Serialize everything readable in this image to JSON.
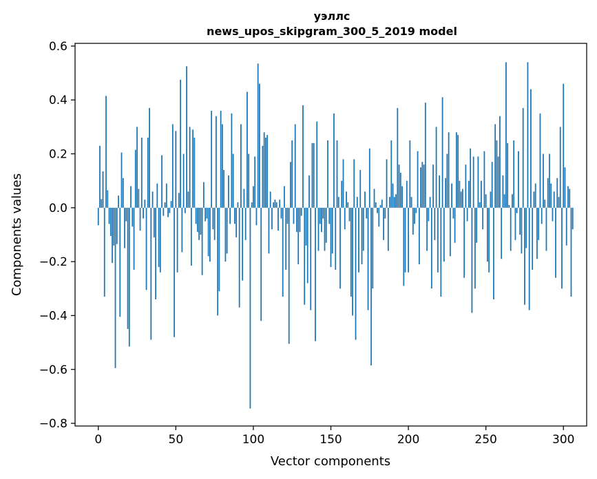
{
  "chart_data": {
    "type": "bar",
    "title_line1": "уэллс",
    "title_line2": "news_upos_skipgram_300_5_2019 model",
    "xlabel": "Vector components",
    "ylabel": "Components values",
    "xlim": [
      -15,
      315
    ],
    "ylim": [
      -0.81,
      0.61
    ],
    "xticks": [
      0,
      50,
      100,
      150,
      200,
      250,
      300
    ],
    "yticks": [
      -0.8,
      -0.6,
      -0.4,
      -0.2,
      0.0,
      0.2,
      0.4,
      0.6
    ],
    "bar_color": "#1f77b4",
    "x_start": 0,
    "values": [
      -0.065,
      0.23,
      0.032,
      0.135,
      -0.33,
      0.415,
      0.065,
      -0.06,
      -0.105,
      -0.205,
      -0.14,
      -0.595,
      -0.135,
      0.045,
      -0.405,
      0.205,
      0.11,
      -0.15,
      -0.05,
      -0.45,
      -0.515,
      0.08,
      -0.07,
      -0.23,
      0.215,
      0.3,
      0.07,
      -0.085,
      0.26,
      -0.04,
      0.03,
      -0.305,
      0.26,
      0.37,
      -0.49,
      0.06,
      -0.11,
      -0.34,
      0.09,
      -0.22,
      -0.24,
      0.195,
      -0.03,
      0.02,
      0.09,
      -0.035,
      -0.02,
      0.025,
      0.31,
      -0.48,
      0.285,
      -0.24,
      0.055,
      0.475,
      -0.165,
      0.2,
      -0.02,
      0.525,
      0.06,
      0.3,
      -0.215,
      0.29,
      0.26,
      -0.06,
      -0.09,
      -0.12,
      -0.1,
      -0.25,
      0.095,
      -0.05,
      -0.04,
      -0.18,
      -0.2,
      0.36,
      -0.08,
      -0.12,
      0.34,
      -0.4,
      -0.31,
      0.36,
      0.31,
      0.14,
      -0.2,
      -0.17,
      0.12,
      -0.06,
      0.35,
      0.2,
      -0.06,
      -0.11,
      0.02,
      -0.37,
      0.31,
      -0.27,
      0.07,
      -0.12,
      0.43,
      0.2,
      -0.745,
      0.02,
      0.08,
      0.19,
      -0.065,
      0.535,
      0.46,
      -0.42,
      0.23,
      0.28,
      0.26,
      0.27,
      -0.17,
      0.06,
      -0.08,
      0.02,
      0.03,
      0.02,
      -0.085,
      0.03,
      -0.04,
      -0.33,
      0.08,
      -0.23,
      -0.06,
      -0.505,
      0.17,
      0.25,
      -0.06,
      0.31,
      -0.09,
      -0.21,
      -0.09,
      -0.03,
      0.38,
      -0.36,
      -0.14,
      -0.28,
      0.12,
      -0.38,
      0.24,
      0.24,
      -0.495,
      0.32,
      -0.16,
      -0.06,
      -0.09,
      -0.04,
      -0.16,
      -0.13,
      0.25,
      -0.06,
      -0.22,
      -0.17,
      0.35,
      -0.23,
      0.25,
      0.04,
      -0.3,
      0.1,
      0.18,
      -0.08,
      0.06,
      0.02,
      -0.05,
      -0.33,
      -0.4,
      0.18,
      -0.49,
      0.04,
      -0.24,
      0.14,
      -0.21,
      -0.16,
      0.06,
      -0.04,
      -0.38,
      0.22,
      -0.585,
      -0.3,
      0.07,
      0.02,
      -0.02,
      -0.07,
      0.01,
      0.03,
      -0.12,
      -0.04,
      0.18,
      -0.16,
      0.04,
      0.25,
      0.09,
      0.04,
      0.05,
      0.37,
      0.16,
      0.13,
      0.08,
      -0.29,
      -0.24,
      0.1,
      -0.24,
      0.25,
      0.04,
      -0.1,
      -0.06,
      -0.02,
      0.21,
      -0.21,
      0.15,
      0.17,
      0.16,
      0.39,
      -0.16,
      -0.05,
      0.04,
      -0.3,
      0.16,
      -0.12,
      0.3,
      -0.24,
      0.12,
      -0.33,
      0.41,
      -0.2,
      0.11,
      0.2,
      0.28,
      -0.18,
      0.09,
      -0.04,
      -0.13,
      0.28,
      0.27,
      0.1,
      0.06,
      0.07,
      -0.26,
      0.16,
      -0.05,
      0.1,
      0.22,
      -0.39,
      0.19,
      -0.3,
      -0.13,
      0.19,
      0.02,
      0.1,
      -0.08,
      0.21,
      0.05,
      -0.2,
      -0.24,
      0.06,
      0.17,
      -0.34,
      0.31,
      0.25,
      0.19,
      0.34,
      -0.19,
      0.12,
      0.05,
      0.54,
      0.24,
      0.01,
      -0.16,
      0.05,
      0.25,
      -0.12,
      -0.02,
      0.21,
      -0.1,
      -0.17,
      0.37,
      -0.36,
      -0.15,
      0.54,
      -0.38,
      0.44,
      -0.23,
      0.06,
      0.09,
      -0.19,
      -0.12,
      0.35,
      -0.06,
      0.2,
      0.03,
      -0.16,
      0.11,
      0.2,
      0.09,
      -0.05,
      0.06,
      -0.26,
      0.11,
      0.04,
      0.3,
      -0.3,
      0.46,
      0.15,
      -0.14,
      0.08,
      0.07,
      -0.33,
      -0.08
    ]
  }
}
